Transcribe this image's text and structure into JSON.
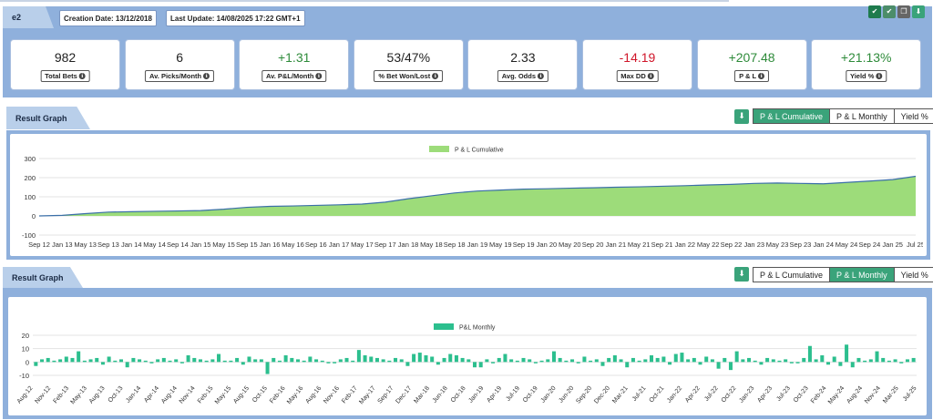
{
  "header": {
    "name": "e2",
    "creation_date": "Creation Date: 13/12/2018",
    "last_update": "Last Update: 14/08/2025 17:22 GMT+1"
  },
  "icons": [
    "check-icon",
    "check-icon",
    "copy-icon",
    "download-icon"
  ],
  "stats": [
    {
      "value": "982",
      "label": "Total Bets",
      "tone": "neutral"
    },
    {
      "value": "6",
      "label": "Av. Picks/Month",
      "tone": "neutral"
    },
    {
      "value": "+1.31",
      "label": "Av. P&L/Month",
      "tone": "pos"
    },
    {
      "value": "53/47%",
      "label": "% Bet Won/Lost",
      "tone": "neutral"
    },
    {
      "value": "2.33",
      "label": "Avg. Odds",
      "tone": "neutral"
    },
    {
      "value": "-14.19",
      "label": "Max DD",
      "tone": "neg"
    },
    {
      "value": "+207.48",
      "label": "P & L",
      "tone": "pos"
    },
    {
      "value": "+21.13%",
      "label": "Yield %",
      "tone": "pos"
    }
  ],
  "graph1": {
    "title": "Result Graph",
    "tabs": [
      {
        "label": "P & L Cumulative",
        "active": true
      },
      {
        "label": "P & L Monthly",
        "active": false
      },
      {
        "label": "Yield %",
        "active": false
      }
    ]
  },
  "graph2": {
    "title": "Result Graph",
    "tabs": [
      {
        "label": "P & L Cumulative",
        "active": false
      },
      {
        "label": "P & L Monthly",
        "active": true
      },
      {
        "label": "Yield %",
        "active": false
      }
    ]
  },
  "chart_data": [
    {
      "type": "area",
      "legend": "P & L Cumulative",
      "color": "#9ddc7a",
      "line_color": "#3b6fa8",
      "ylim": [
        -100,
        300
      ],
      "yticks": [
        "300",
        "200",
        "100",
        "0",
        "-100"
      ],
      "xticks": [
        "Sep 12",
        "Jan 13",
        "May 13",
        "Sep 13",
        "Jan 14",
        "May 14",
        "Sep 14",
        "Jan 15",
        "May 15",
        "Sep 15",
        "Jan 16",
        "May 16",
        "Sep 16",
        "Jan 17",
        "May 17",
        "Sep 17",
        "Jan 18",
        "May 18",
        "Sep 18",
        "Jan 19",
        "May 19",
        "Sep 19",
        "Jan 20",
        "May 20",
        "Sep 20",
        "Jan 21",
        "May 21",
        "Sep 21",
        "Jan 22",
        "May 22",
        "Sep 22",
        "Jan 23",
        "May 23",
        "Sep 23",
        "Jan 24",
        "May 24",
        "Sep 24",
        "Jan 25",
        "Jul 25"
      ],
      "values": [
        0,
        3,
        12,
        20,
        22,
        24,
        26,
        28,
        35,
        45,
        50,
        52,
        55,
        58,
        62,
        72,
        90,
        105,
        120,
        130,
        135,
        140,
        142,
        145,
        147,
        150,
        152,
        155,
        158,
        162,
        165,
        170,
        172,
        170,
        168,
        175,
        182,
        190,
        207
      ]
    },
    {
      "type": "bar",
      "legend": "P&L Monthly",
      "color": "#2cbf8e",
      "ylim": [
        -10,
        20
      ],
      "yticks": [
        "20",
        "10",
        "0",
        "-10"
      ],
      "xticks": [
        "Aug-12",
        "Nov-12",
        "Feb-13",
        "May-13",
        "Aug-13",
        "Oct-13",
        "Jan-14",
        "Apr-14",
        "Aug-14",
        "Nov-14",
        "Feb-15",
        "May-15",
        "Aug-15",
        "Oct-15",
        "Feb-16",
        "May-16",
        "Aug-16",
        "Nov-16",
        "Feb-17",
        "May-17",
        "Sep-17",
        "Dec-17",
        "Mar-18",
        "Jun-18",
        "Oct-18",
        "Jan-19",
        "Apr-19",
        "Jul-19",
        "Oct-19",
        "Jan-20",
        "Jun-20",
        "Sep-20",
        "Dec-20",
        "Mar-21",
        "Jul-21",
        "Oct-21",
        "Jan-22",
        "Apr-22",
        "Jul-22",
        "Oct-22",
        "Jan-23",
        "Apr-23",
        "Jul-23",
        "Oct-23",
        "Feb-24",
        "May-24",
        "Aug-24",
        "Nov-24",
        "Mar-25",
        "Jul-25"
      ],
      "values": [
        -3,
        2,
        3,
        1,
        2,
        4,
        3,
        8,
        1,
        2,
        3,
        -2,
        4,
        1,
        2,
        -4,
        3,
        2,
        1,
        -1,
        2,
        3,
        1,
        2,
        -1,
        5,
        3,
        2,
        1,
        2,
        6,
        1,
        1,
        3,
        -2,
        4,
        2,
        2,
        -9,
        3,
        1,
        5,
        3,
        2,
        1,
        4,
        2,
        1,
        -1,
        -1,
        2,
        3,
        1,
        9,
        5,
        4,
        3,
        2,
        1,
        3,
        2,
        -3,
        6,
        7,
        5,
        4,
        -2,
        3,
        6,
        5,
        3,
        2,
        -4,
        -4,
        2,
        -1,
        3,
        6,
        2,
        1,
        3,
        2,
        -1,
        1,
        2,
        8,
        3,
        1,
        2,
        -1,
        4,
        1,
        2,
        -3,
        3,
        5,
        2,
        -4,
        3,
        1,
        2,
        5,
        3,
        4,
        -2,
        6,
        7,
        2,
        3,
        -2,
        4,
        2,
        -5,
        3,
        -6,
        8,
        2,
        3,
        1,
        -2,
        3,
        2,
        1,
        2,
        -1,
        -1,
        3,
        12,
        2,
        5,
        -2,
        4,
        -3,
        13,
        -4,
        3,
        1,
        2,
        8,
        3,
        1,
        2,
        -1,
        2,
        3
      ]
    }
  ]
}
